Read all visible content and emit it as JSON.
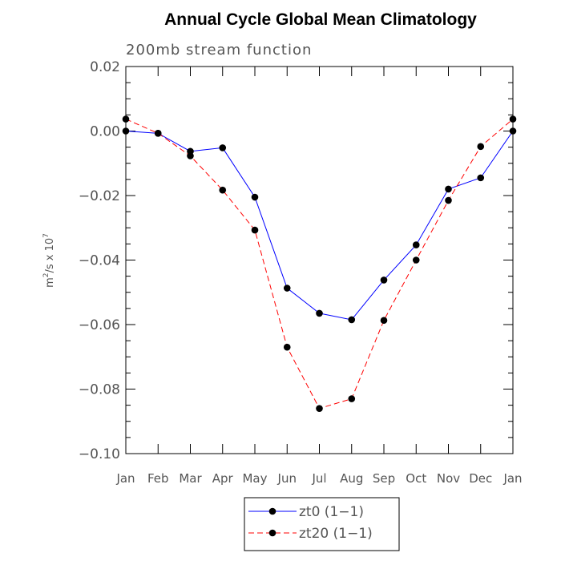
{
  "chart_data": {
    "type": "line",
    "title": "Annual Cycle Global Mean Climatology",
    "subtitle": "200mb stream function",
    "ylabel_base": "m",
    "ylabel_sup1": "2",
    "ylabel_mid": "/s x 10",
    "ylabel_sup2": "7",
    "categories": [
      "Jan",
      "Feb",
      "Mar",
      "Apr",
      "May",
      "Jun",
      "Jul",
      "Aug",
      "Sep",
      "Oct",
      "Nov",
      "Dec",
      "Jan"
    ],
    "ylim": [
      -0.1,
      0.02
    ],
    "yticks": [
      0.02,
      0.0,
      -0.02,
      -0.04,
      -0.06,
      -0.08,
      -0.1
    ],
    "ytick_labels": [
      "0.02",
      "0.00",
      "−0.02",
      "−0.04",
      "−0.06",
      "−0.08",
      "−0.10"
    ],
    "legend_position": "bottom-center",
    "series": [
      {
        "name": "zt0 (1−1)",
        "color": "#0000ff",
        "dash": "solid",
        "values": [
          0.0,
          -0.0007,
          -0.0063,
          -0.0052,
          -0.0205,
          -0.0487,
          -0.0565,
          -0.0585,
          -0.0462,
          -0.0353,
          -0.018,
          -0.0145,
          0.0
        ]
      },
      {
        "name": "zt20 (1−1)",
        "color": "#ff0000",
        "dash": "dashed",
        "values": [
          0.0037,
          -0.0007,
          -0.0077,
          -0.0183,
          -0.0307,
          -0.067,
          -0.086,
          -0.083,
          -0.0587,
          -0.04,
          -0.0215,
          -0.0048,
          0.0037
        ]
      }
    ]
  }
}
